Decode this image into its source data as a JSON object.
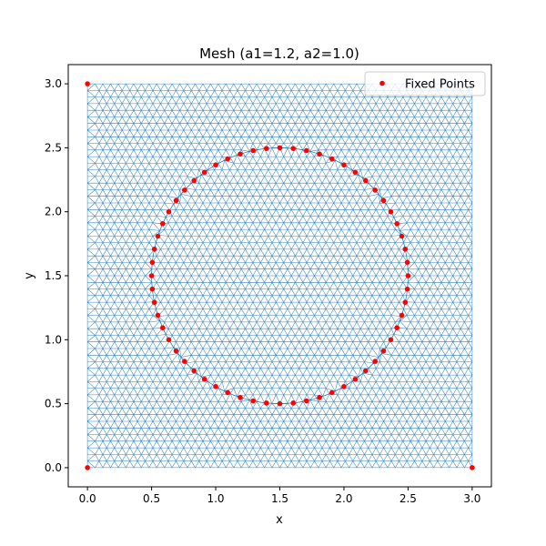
{
  "chart_data": {
    "type": "scatter",
    "title": "Mesh (a1=1.2, a2=1.0)",
    "xlabel": "x",
    "ylabel": "y",
    "xlim": [
      -0.15,
      3.15
    ],
    "ylim": [
      -0.15,
      3.15
    ],
    "x_ticks": [
      "0.0",
      "0.5",
      "1.0",
      "1.5",
      "2.0",
      "2.5",
      "3.0"
    ],
    "y_ticks": [
      "0.0",
      "0.5",
      "1.0",
      "1.5",
      "2.0",
      "2.5",
      "3.0"
    ],
    "grid": false,
    "legend_placement": "top-right",
    "mesh": {
      "domain": {
        "xmin": 0.0,
        "xmax": 3.0,
        "ymin": 0.0,
        "ymax": 3.0
      },
      "element_size": 0.06,
      "hole": {
        "center": [
          1.5,
          1.5
        ],
        "radius": 1.0
      },
      "color": "#1f77b4"
    },
    "series": [
      {
        "name": "Fixed Points",
        "color": "#ff0000",
        "marker": "dot",
        "corners": [
          [
            0.0,
            0.0
          ],
          [
            3.0,
            0.0
          ],
          [
            0.0,
            3.0
          ]
        ],
        "circle": {
          "center": [
            1.5,
            1.5
          ],
          "radius": 1.0,
          "count": 60
        }
      }
    ]
  }
}
